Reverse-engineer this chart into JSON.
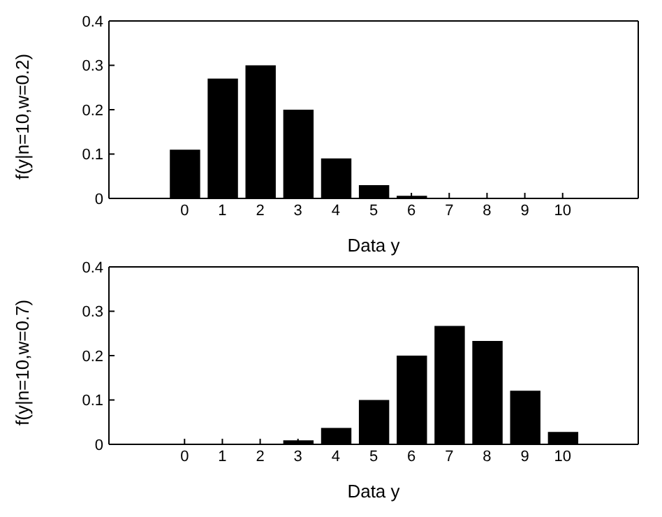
{
  "chart_data": [
    {
      "type": "bar",
      "xlabel": "Data y",
      "ylabel": "f(y|n=10,w=0.2)",
      "x": [
        0,
        1,
        2,
        3,
        4,
        5,
        6,
        7,
        8,
        9,
        10
      ],
      "series": [
        {
          "color": "#000000",
          "values": [
            0.11,
            0.27,
            0.3,
            0.2,
            0.09,
            0.03,
            0.006,
            0.001,
            0,
            0,
            0
          ]
        }
      ],
      "xlim": [
        -2,
        12
      ],
      "xticks": [
        0,
        1,
        2,
        3,
        4,
        5,
        6,
        7,
        8,
        9,
        10
      ],
      "ylim": [
        0,
        0.4
      ],
      "yticks": [
        0,
        0.1,
        0.2,
        0.3,
        0.4
      ],
      "grid": false,
      "legend": false
    },
    {
      "type": "bar",
      "xlabel": "Data y",
      "ylabel": "f(y|n=10,w=0.7)",
      "x": [
        0,
        1,
        2,
        3,
        4,
        5,
        6,
        7,
        8,
        9,
        10
      ],
      "series": [
        {
          "color": "#000000",
          "values": [
            0,
            0,
            0.001,
            0.009,
            0.037,
            0.1,
            0.2,
            0.267,
            0.233,
            0.121,
            0.028
          ]
        }
      ],
      "xlim": [
        -2,
        12
      ],
      "xticks": [
        0,
        1,
        2,
        3,
        4,
        5,
        6,
        7,
        8,
        9,
        10
      ],
      "ylim": [
        0,
        0.4
      ],
      "yticks": [
        0,
        0.1,
        0.2,
        0.3,
        0.4
      ],
      "grid": false,
      "legend": false
    }
  ]
}
